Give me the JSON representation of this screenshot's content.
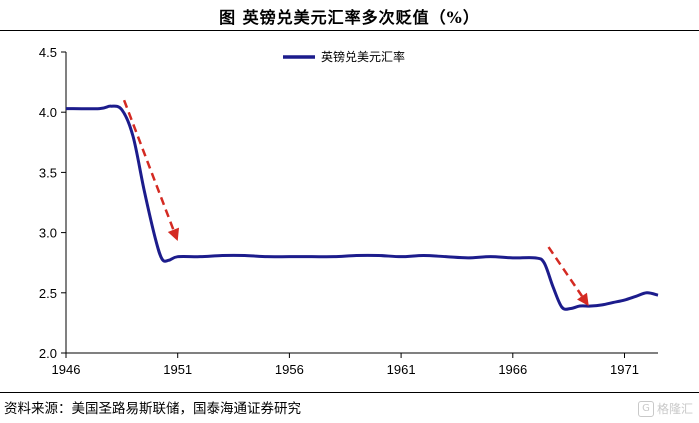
{
  "title": "图  英镑兑美元汇率多次贬值（%）",
  "source": "资料来源：美国圣路易斯联储，国泰海通证券研究",
  "watermark": {
    "text": "格隆汇",
    "icon": "logo-icon"
  },
  "colors": {
    "series": "#1c1c8c",
    "arrow": "#d42a22",
    "axis": "#000000"
  },
  "chart_data": {
    "type": "line",
    "title": "图  英镑兑美元汇率多次贬值（%）",
    "ylim": [
      2.0,
      4.5
    ],
    "xlim": [
      1946,
      1972.5
    ],
    "y_ticks": [
      "2.0",
      "2.5",
      "3.0",
      "3.5",
      "4.0",
      "4.5"
    ],
    "y_tick_values": [
      2.0,
      2.5,
      3.0,
      3.5,
      4.0,
      4.5
    ],
    "x_ticks": [
      "1946",
      "1951",
      "1956",
      "1961",
      "1966",
      "1971"
    ],
    "x_tick_values": [
      1946,
      1951,
      1956,
      1961,
      1966,
      1971
    ],
    "grid": false,
    "legend_position": "top-center",
    "series": [
      {
        "name": "英镑兑美元汇率",
        "x": [
          1946,
          1947.5,
          1948.0,
          1948.5,
          1949.0,
          1949.5,
          1950.0,
          1950.3,
          1950.6,
          1951.0,
          1952,
          1953,
          1954,
          1955,
          1956,
          1957,
          1958,
          1959,
          1960,
          1961,
          1962,
          1963,
          1964,
          1965,
          1966,
          1967.0,
          1967.4,
          1967.8,
          1968.2,
          1968.6,
          1969.0,
          1969.5,
          1970.0,
          1970.5,
          1971.0,
          1971.5,
          1972.0,
          1972.5
        ],
        "values": [
          4.03,
          4.03,
          4.05,
          4.02,
          3.8,
          3.35,
          2.95,
          2.78,
          2.77,
          2.8,
          2.8,
          2.81,
          2.81,
          2.8,
          2.8,
          2.8,
          2.8,
          2.81,
          2.81,
          2.8,
          2.81,
          2.8,
          2.79,
          2.8,
          2.79,
          2.79,
          2.75,
          2.55,
          2.38,
          2.37,
          2.39,
          2.39,
          2.4,
          2.42,
          2.44,
          2.47,
          2.5,
          2.48
        ]
      }
    ],
    "annotations": [
      {
        "type": "arrow",
        "from": [
          1948.6,
          4.1
        ],
        "to": [
          1951.0,
          2.93
        ]
      },
      {
        "type": "arrow",
        "from": [
          1967.6,
          2.88
        ],
        "to": [
          1969.4,
          2.39
        ]
      }
    ]
  }
}
